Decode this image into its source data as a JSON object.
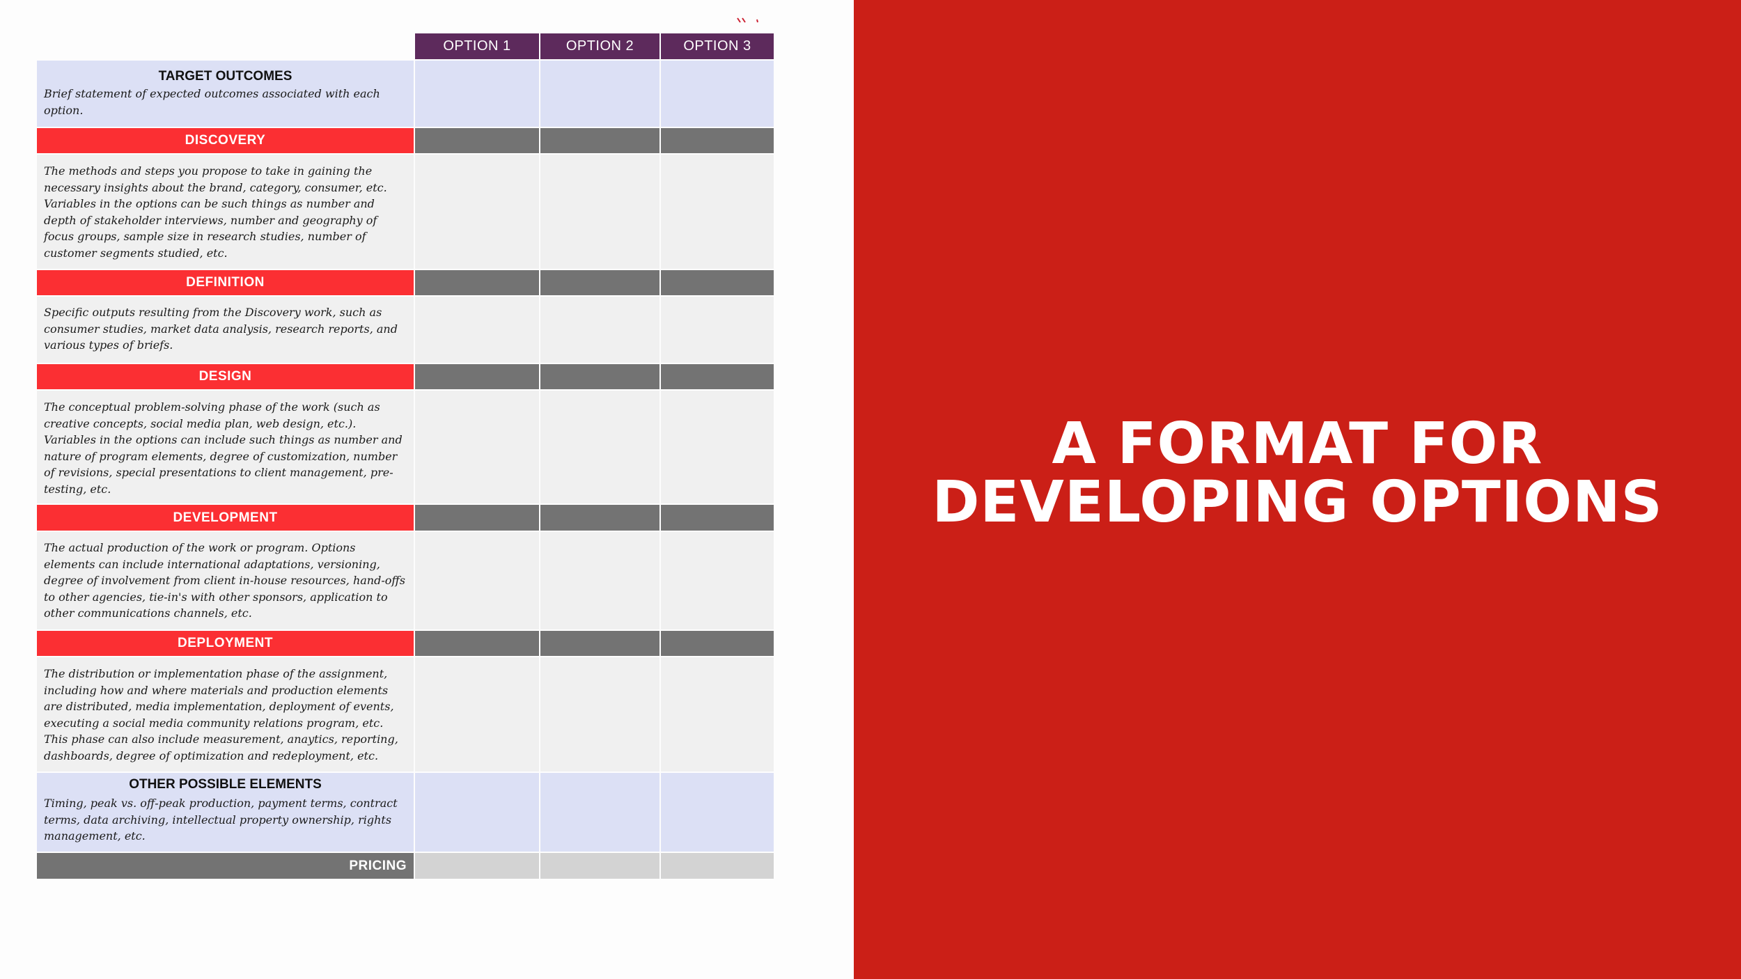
{
  "table": {
    "option_headers": [
      "OPTION 1",
      "OPTION 2",
      "OPTION 3"
    ],
    "target_outcomes": {
      "title": "TARGET OUTCOMES",
      "description": "Brief statement of expected outcomes associated with each option."
    },
    "sections": [
      {
        "label": "DISCOVERY",
        "description": "The methods and steps you propose to take in gaining the necessary insights about the brand, category, consumer, etc. Variables in the options can be such things as number and depth of stakeholder interviews, number and geography of focus groups, sample size in research studies, number of customer segments studied, etc."
      },
      {
        "label": "DEFINITION",
        "description": "Specific outputs resulting from the Discovery work, such as consumer studies, market data analysis, research reports, and various types of briefs."
      },
      {
        "label": "DESIGN",
        "description": "The conceptual problem-solving phase of the work (such as creative concepts, social media plan, web design, etc.). Variables in the options can include such things as number and nature of program elements, degree of customization, number of revisions, special presentations to client management, pre-testing, etc."
      },
      {
        "label": "DEVELOPMENT",
        "description": "The actual production of the work or program.  Options elements can include international adaptations, versioning, degree of involvement from client in-house resources, hand-offs to other agencies, tie-in's with other sponsors, application to other communications channels, etc."
      },
      {
        "label": "DEPLOYMENT",
        "description": "The distribution or implementation phase of the assignment, including how and where materials and production elements are distributed, media implementation, deployment of events, executing a social media community relations program, etc. This phase can also include measurement, anaytics, reporting, dashboards, degree of optimization and redeployment, etc."
      }
    ],
    "other_elements": {
      "title": "OTHER POSSIBLE ELEMENTS",
      "description": "Timing, peak vs. off-peak production, payment terms, contract terms, data archiving, intellectual property ownership, rights management, etc."
    },
    "pricing_label": "PRICING"
  },
  "slide": {
    "title_line1": "A FORMAT FOR",
    "title_line2": "DEVELOPING OPTIONS"
  },
  "colors": {
    "right_panel": "#cb1f17",
    "header_purple": "#5d2a5c",
    "section_red": "#fb2f33",
    "section_bar_gray": "#737373",
    "light_blue": "#dce0f5",
    "light_gray": "#f0f0f0"
  }
}
